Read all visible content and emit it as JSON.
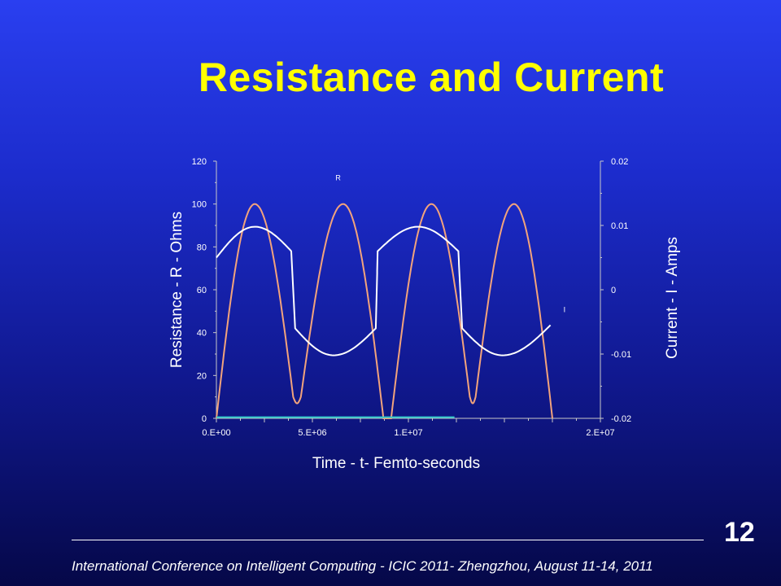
{
  "slide": {
    "title": "Resistance and Current",
    "page_number": "12",
    "footer": "International Conference on Intelligent Computing - ICIC 2011- Zhengzhou, August 11-14, 2011"
  },
  "colors": {
    "title": "#ffff00",
    "resistance_series": "#f2a37c",
    "current_series": "#ffffff",
    "baseline_series": "#33cccc"
  },
  "chart_data": {
    "type": "line",
    "title": "",
    "xlabel": "Time - t- Femto-seconds",
    "ylabel": "Resistance - R - Ohms",
    "y2label": "Current - I - Amps",
    "xlim": [
      0,
      20000000
    ],
    "ylim": [
      0,
      120
    ],
    "y2lim": [
      -0.02,
      0.02
    ],
    "x_ticks": [
      "0.E+00",
      "5.E+06",
      "1.E+07",
      "2.E+07"
    ],
    "y_ticks": [
      "0",
      "20",
      "40",
      "60",
      "80",
      "100",
      "120"
    ],
    "y2_ticks": [
      "-0.02",
      "-0.01",
      "0",
      "0.01",
      "0.02"
    ],
    "grid": false,
    "series": [
      {
        "name": "R",
        "axis": "left",
        "x": [
          0,
          2000000,
          4000000,
          4400000,
          6600000,
          8700000,
          9100000,
          11200000,
          13200000,
          13500000,
          15500000,
          17500000
        ],
        "y": [
          0,
          100,
          10,
          10,
          100,
          0,
          0,
          100,
          10,
          10,
          100,
          0
        ]
      },
      {
        "name": "I",
        "axis": "right",
        "x": [
          0,
          2000000,
          3900000,
          4100000,
          6100000,
          8300000,
          8400000,
          10500000,
          12600000,
          12800000,
          14900000,
          17400000
        ],
        "y": [
          0.005,
          0.0098,
          0.006,
          -0.006,
          -0.0102,
          -0.006,
          0.006,
          0.0098,
          0.006,
          -0.006,
          -0.0102,
          -0.0055
        ]
      },
      {
        "name": "",
        "axis": "left",
        "x": [
          0,
          12400000
        ],
        "y": [
          0.5,
          0.5
        ]
      }
    ]
  }
}
